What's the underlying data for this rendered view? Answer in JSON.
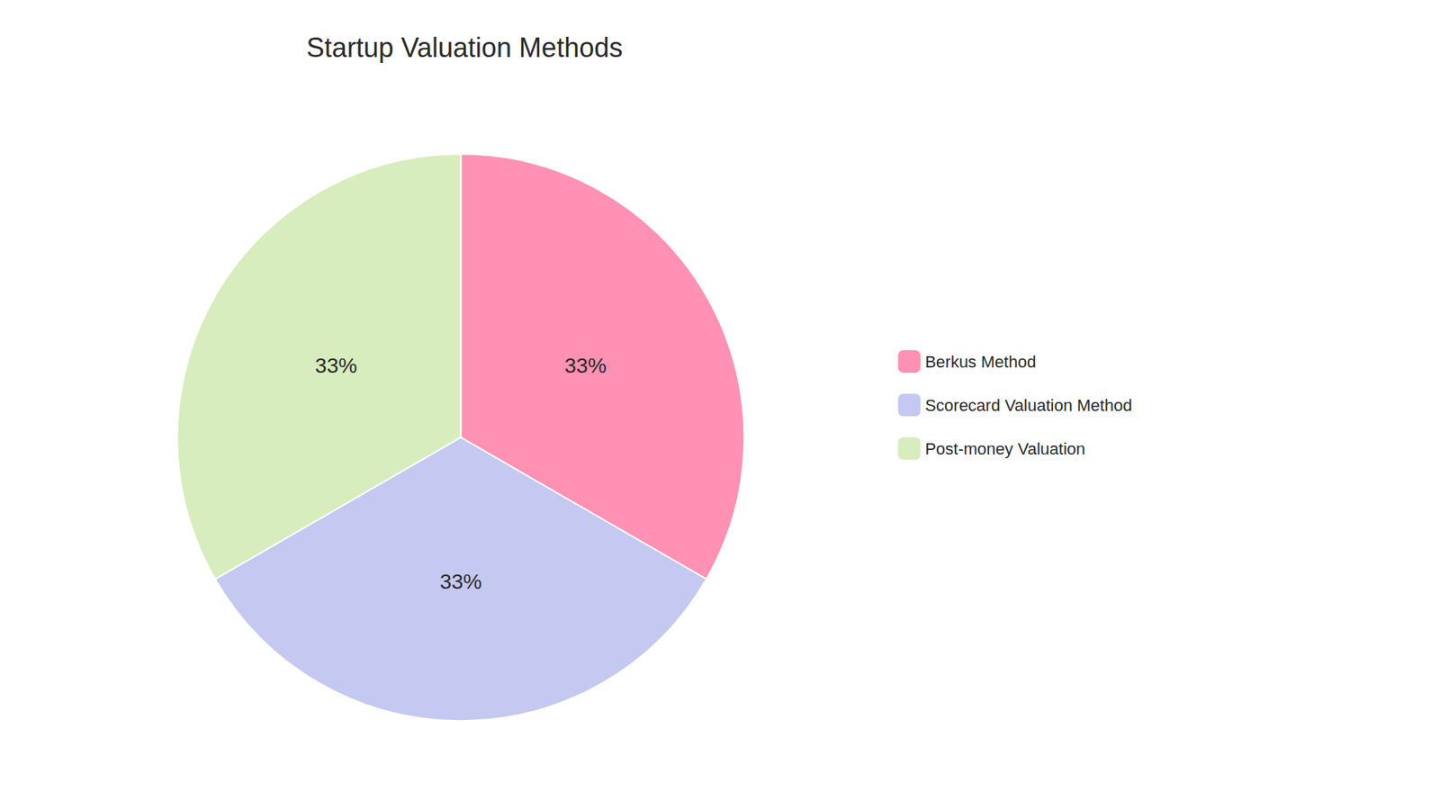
{
  "chart_data": {
    "type": "pie",
    "title": "Startup Valuation Methods",
    "categories": [
      "Berkus Method",
      "Scorecard Valuation Method",
      "Post-money Valuation"
    ],
    "values": [
      33.33,
      33.34,
      33.33
    ],
    "value_labels": [
      "33%",
      "33%",
      "33%"
    ],
    "colors": [
      "#FF91B4",
      "#C5C8F0",
      "#D8EDBE"
    ],
    "data_labels": true,
    "legend": "right"
  }
}
